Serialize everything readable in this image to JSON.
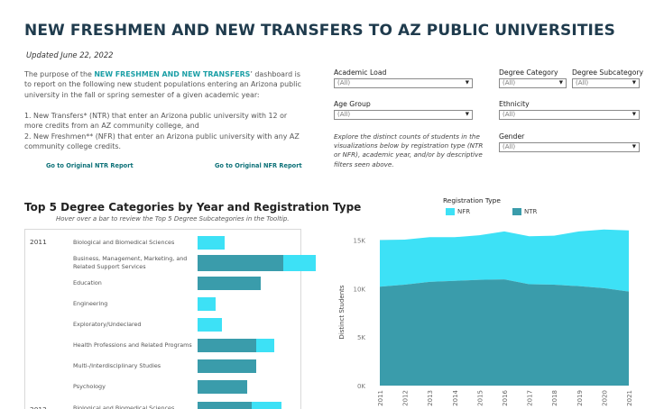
{
  "header": {
    "title": "NEW FRESHMEN AND NEW TRANSFERS TO AZ PUBLIC UNIVERSITIES",
    "updated": "Updated June 22, 2022"
  },
  "intro": {
    "prefix": "The purpose of the ",
    "highlight": "NEW FRESHMEN AND NEW TRANSFERS",
    "suffix": "’ dashboard is to report on the following new student populations entering an Arizona public university in the fall or spring semester of a given academic year:",
    "item1": "1. New Transfers* (NTR) that enter an Arizona public university with 12 or more credits from an AZ community college, and",
    "item2": "2. New Freshmen** (NFR) that enter an Arizona public university with any AZ community college credits."
  },
  "links": {
    "ntr": "Go to Original NTR Report",
    "nfr": "Go to Original NFR Report"
  },
  "filters": {
    "academic_load": {
      "label": "Academic Load",
      "value": "(All)"
    },
    "degree_category": {
      "label": "Degree Category",
      "value": "(All)"
    },
    "degree_subcategory": {
      "label": "Degree Subcategory",
      "value": "(All)"
    },
    "age_group": {
      "label": "Age Group",
      "value": "(All)"
    },
    "ethnicity": {
      "label": "Ethnicity",
      "value": "(All)"
    },
    "gender": {
      "label": "Gender",
      "value": "(All)"
    },
    "explore_text": "Explore the distinct counts of students in the visualizations below by registration type (NTR or NFR), academic year, and/or by descriptive filters seen above."
  },
  "top5": {
    "title": "Top 5 Degree Categories by Year and Registration Type",
    "subtitle": "Hover over a bar to review the Top 5 Degree Subcategories in the Tooltip.",
    "year_2011": "2011",
    "year_2012": "2012",
    "rows": [
      {
        "label": "Biological and Biomedical Sciences",
        "ntr": 0,
        "nfr": 0.1
      },
      {
        "label": "Business, Management, Marketing, and Related Support Services",
        "ntr": 0.19,
        "nfr": 0.12
      },
      {
        "label": "Education",
        "ntr": 0.14,
        "nfr": 0
      },
      {
        "label": "Engineering",
        "ntr": 0,
        "nfr": 0.065
      },
      {
        "label": "Exploratory/Undeclared",
        "ntr": 0,
        "nfr": 0.09
      },
      {
        "label": "Health Professions and Related Programs",
        "ntr": 0.13,
        "nfr": 0.065
      },
      {
        "label": "Multi-/Interdisciplinary Studies",
        "ntr": 0.13,
        "nfr": 0
      },
      {
        "label": "Psychology",
        "ntr": 0.11,
        "nfr": 0
      },
      {
        "label": "Biological and Biomedical Sciences",
        "ntr": 0.12,
        "nfr": 0.11
      }
    ]
  },
  "colors": {
    "nfr": "#3de1f6",
    "ntr": "#3a9cab"
  },
  "chart_data": {
    "type": "area",
    "legend_title": "Registration Type",
    "legend": [
      "NFR",
      "NTR"
    ],
    "ylabel": "Distinct Students",
    "xlabel": "",
    "ylim": [
      0,
      17000
    ],
    "yticks": [
      0,
      5000,
      10000,
      15000
    ],
    "ytick_labels": [
      "0K",
      "5K",
      "10K",
      "15K"
    ],
    "categories": [
      "2011",
      "2012",
      "2013",
      "2014",
      "2015",
      "2016",
      "2017",
      "2018",
      "2019",
      "2020",
      "2021"
    ],
    "stacked": true,
    "series": [
      {
        "name": "NTR",
        "values": [
          10200,
          10400,
          10700,
          10800,
          10900,
          10950,
          10450,
          10400,
          10250,
          10050,
          9700
        ]
      },
      {
        "name": "NFR",
        "values": [
          4800,
          4650,
          4600,
          4500,
          4600,
          4950,
          4950,
          5050,
          5650,
          6050,
          6300
        ]
      }
    ]
  }
}
